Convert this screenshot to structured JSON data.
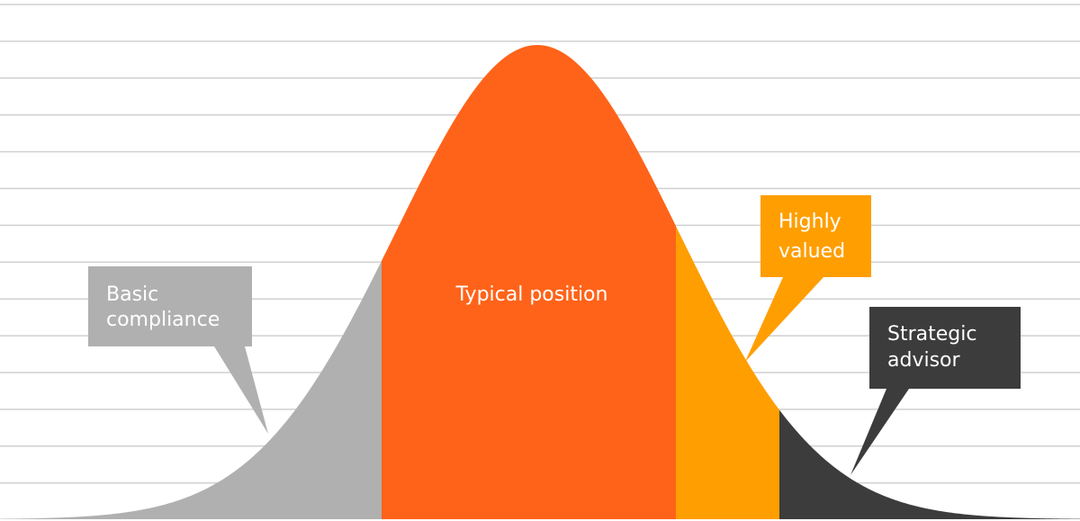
{
  "labels": {
    "basic": {
      "lines": [
        "Basic",
        "compliance"
      ]
    },
    "typical": {
      "lines": [
        "Typical position"
      ]
    },
    "highly": {
      "lines": [
        "Highly",
        "valued"
      ]
    },
    "strategic": {
      "lines": [
        "Strategic",
        "advisor"
      ]
    }
  }
}
